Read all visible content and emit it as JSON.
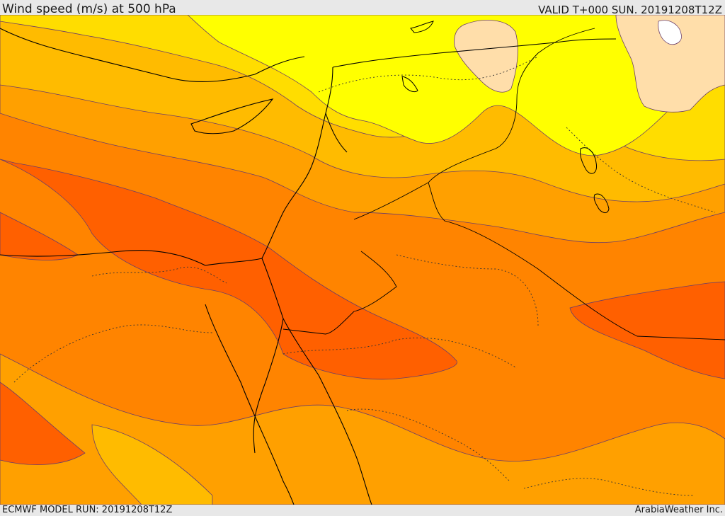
{
  "header": {
    "title": "Wind speed (m/s) at 500 hPa",
    "valid": "VALID T+000 SUN. 20191208T12Z"
  },
  "footer": {
    "model_run": "ECMWF MODEL RUN: 20191208T12Z",
    "credit": "ArabiaWeather Inc."
  },
  "map": {
    "field": "wind speed",
    "level": "500 hPa",
    "region": "Eastern Mediterranean / Middle East",
    "palette": {
      "lightest": "#ffffff",
      "light_orange": "#ffdeaa",
      "yellow": "#ffff00",
      "gold": "#ffdd00",
      "amber": "#ffbb00",
      "orange_light": "#ffa000",
      "orange": "#ff8400",
      "orange_dark": "#ff6000",
      "boundary": "#000000",
      "contour": "#6a3d6a"
    }
  }
}
